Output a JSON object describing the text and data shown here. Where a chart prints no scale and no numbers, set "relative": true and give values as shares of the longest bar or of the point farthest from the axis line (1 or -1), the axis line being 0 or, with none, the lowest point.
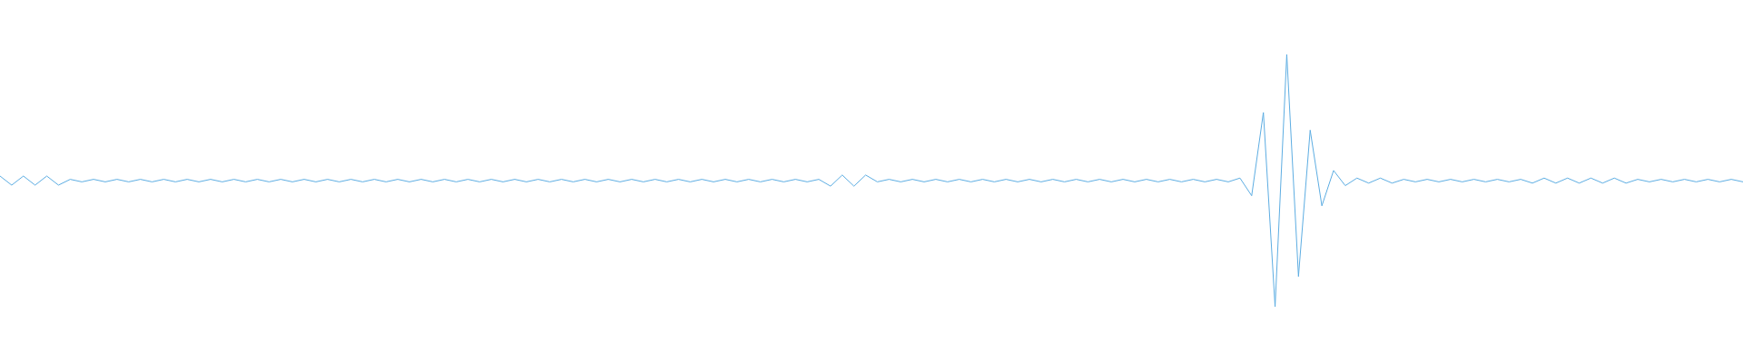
{
  "chart_data": {
    "type": "line",
    "relative": true,
    "marker": "none",
    "legend": false,
    "grid": false,
    "tick_labels": false,
    "categories": [
      null,
      null,
      null,
      null,
      null,
      null,
      null,
      null,
      null,
      null,
      null,
      null,
      null,
      null,
      null,
      null,
      null,
      null,
      null,
      null,
      null,
      null,
      null,
      null,
      null,
      null,
      null,
      null,
      null,
      null,
      null,
      null,
      null,
      null,
      null,
      null,
      null,
      null,
      null,
      null,
      null,
      null,
      null,
      null,
      null,
      null,
      null,
      null,
      null,
      null,
      null,
      null,
      null,
      null,
      null,
      null,
      null,
      null,
      null,
      null,
      null,
      null,
      null,
      null,
      null,
      null,
      null,
      null,
      null,
      null,
      null,
      null,
      null,
      null,
      null,
      null,
      null,
      null,
      null,
      null,
      null,
      null,
      null,
      null,
      null,
      null,
      null,
      null,
      null,
      null,
      null,
      null,
      null,
      null,
      null,
      null,
      null,
      null,
      null,
      null,
      null,
      null,
      null,
      null,
      null,
      null,
      null,
      null,
      null,
      null,
      null,
      null,
      null,
      null,
      null,
      null,
      null,
      null,
      null,
      null,
      null,
      null,
      null,
      null,
      null,
      null,
      null,
      null,
      null,
      null,
      null,
      null,
      null,
      null,
      null,
      null,
      null,
      null,
      null,
      null,
      null,
      null,
      null,
      null,
      null,
      null,
      null,
      null,
      null,
      null
    ],
    "series": [
      {
        "color": "#5dade2",
        "values": [
          0.518,
          0.482,
          0.518,
          0.482,
          0.518,
          0.482,
          0.505,
          0.495,
          0.505,
          0.495,
          0.505,
          0.495,
          0.505,
          0.495,
          0.505,
          0.495,
          0.505,
          0.495,
          0.505,
          0.495,
          0.505,
          0.495,
          0.505,
          0.495,
          0.505,
          0.495,
          0.505,
          0.495,
          0.505,
          0.495,
          0.505,
          0.495,
          0.505,
          0.495,
          0.505,
          0.495,
          0.505,
          0.495,
          0.505,
          0.495,
          0.505,
          0.495,
          0.505,
          0.495,
          0.505,
          0.495,
          0.505,
          0.495,
          0.505,
          0.495,
          0.505,
          0.495,
          0.505,
          0.495,
          0.505,
          0.495,
          0.505,
          0.495,
          0.505,
          0.495,
          0.505,
          0.495,
          0.505,
          0.495,
          0.505,
          0.495,
          0.505,
          0.495,
          0.505,
          0.495,
          0.505,
          0.478,
          0.522,
          0.478,
          0.522,
          0.495,
          0.505,
          0.495,
          0.505,
          0.495,
          0.505,
          0.495,
          0.505,
          0.495,
          0.505,
          0.495,
          0.505,
          0.495,
          0.505,
          0.495,
          0.505,
          0.495,
          0.505,
          0.495,
          0.505,
          0.495,
          0.505,
          0.495,
          0.505,
          0.495,
          0.505,
          0.495,
          0.505,
          0.495,
          0.505,
          0.495,
          0.51,
          0.44,
          0.77,
          0,
          1,
          0.12,
          0.7,
          0.4,
          0.54,
          0.48,
          0.51,
          0.49,
          0.51,
          0.49,
          0.505,
          0.495,
          0.505,
          0.495,
          0.505,
          0.495,
          0.505,
          0.495,
          0.505,
          0.495,
          0.505,
          0.49,
          0.51,
          0.49,
          0.51,
          0.49,
          0.51,
          0.49,
          0.51,
          0.49,
          0.505,
          0.495,
          0.505,
          0.495,
          0.505,
          0.495,
          0.505,
          0.495,
          0.505,
          0.495
        ]
      }
    ]
  }
}
